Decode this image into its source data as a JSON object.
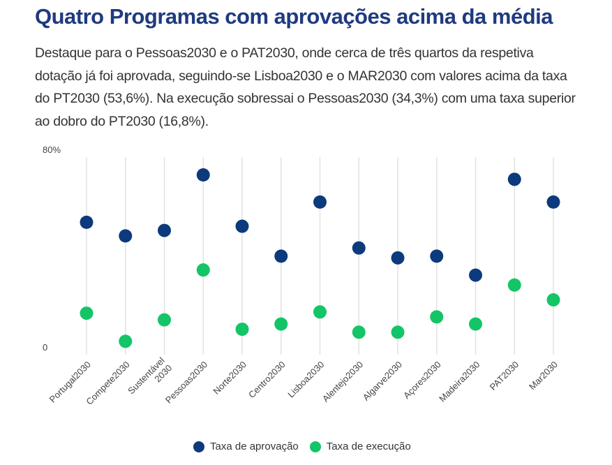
{
  "header": {
    "title": "Quatro Programas com aprovações acima da média",
    "subtitle": "Destaque para o Pessoas2030 e o PAT2030, onde cerca de três quartos da respetiva dotação já foi aprovada, seguindo-se Lisboa2030 e o MAR2030 com valores acima da taxa do PT2030 (53,6%). Na execução sobressai o Pessoas2030 (34,3%) com uma taxa superior ao dobro do PT2030 (16,8%)."
  },
  "chart_data": {
    "type": "scatter",
    "title": "Quatro Programas com aprovações acima da média",
    "xlabel": "",
    "ylabel": "",
    "ylim": [
      0,
      80
    ],
    "yticks": [
      {
        "value": 0,
        "label": "0"
      },
      {
        "value": 80,
        "label": "80%"
      }
    ],
    "grid": "vertical",
    "legend_position": "bottom-center",
    "categories": [
      "Portugal2030",
      "Compete2030",
      "Sustentável 2030",
      "Pessoas2030",
      "Norte2030",
      "Centro2030",
      "Lisboa2030",
      "Alentejo2030",
      "Algarve2030",
      "Açores2030",
      "Madeira2030",
      "PAT2030",
      "Mar2030"
    ],
    "category_label_lines": [
      [
        "Portugal2030"
      ],
      [
        "Compete2030"
      ],
      [
        "Sustentável",
        "2030"
      ],
      [
        "Pessoas2030"
      ],
      [
        "Norte2030"
      ],
      [
        "Centro2030"
      ],
      [
        "Lisboa2030"
      ],
      [
        "Alentejo2030"
      ],
      [
        "Algarve2030"
      ],
      [
        "Açores2030"
      ],
      [
        "Madeira2030"
      ],
      [
        "PAT2030"
      ],
      [
        "Mar2030"
      ]
    ],
    "series": [
      {
        "name": "Taxa de aprovação",
        "color": "#0c3a7c",
        "values": [
          53.6,
          48.1,
          50.3,
          72.8,
          52.0,
          39.9,
          61.8,
          43.2,
          39.2,
          39.9,
          32.2,
          71.0,
          61.8
        ]
      },
      {
        "name": "Taxa de execução",
        "color": "#13c566",
        "values": [
          16.8,
          5.4,
          14.1,
          34.3,
          10.3,
          12.4,
          17.3,
          9.1,
          9.1,
          15.3,
          12.4,
          28.2,
          22.2
        ]
      }
    ]
  }
}
